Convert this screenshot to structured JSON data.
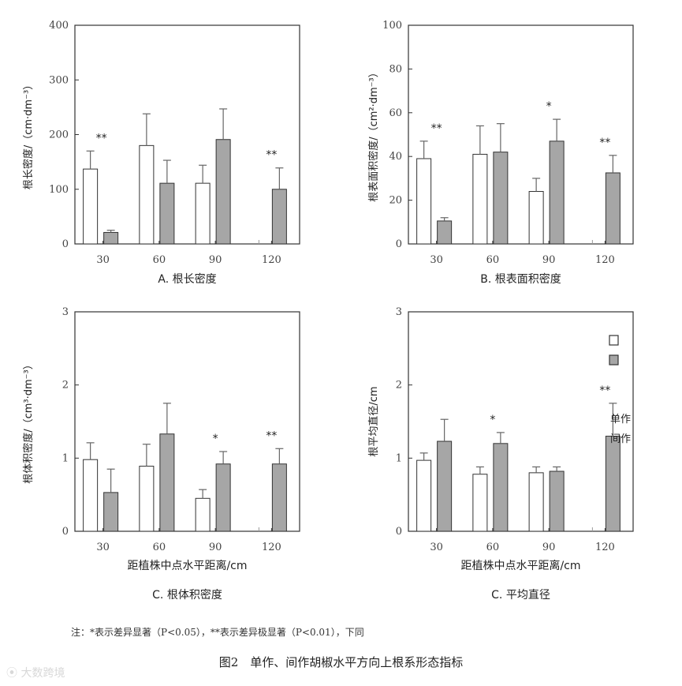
{
  "chart_data": [
    {
      "type": "bar",
      "panel_caption": "A. 根长密度",
      "xlabel": "",
      "ylabel": "根长密度/（cm·dm⁻³）",
      "ylim": [
        0,
        400
      ],
      "yticks": [
        "0",
        "100",
        "200",
        "300",
        "400"
      ],
      "categories": [
        "30",
        "60",
        "90",
        "120"
      ],
      "series": [
        {
          "name": "单作",
          "values": [
            137,
            180,
            111,
            0
          ],
          "errors": [
            33,
            58,
            33,
            0
          ]
        },
        {
          "name": "间作",
          "values": [
            21,
            111,
            191,
            100
          ],
          "errors": [
            4,
            42,
            56,
            39
          ]
        }
      ],
      "significance": [
        "**",
        "",
        "",
        "**"
      ]
    },
    {
      "type": "bar",
      "panel_caption": "B. 根表面积密度",
      "xlabel": "",
      "ylabel": "根表面积密度/（cm²·dm⁻³）",
      "ylim": [
        0,
        100
      ],
      "yticks": [
        "0",
        "20",
        "40",
        "60",
        "80",
        "100"
      ],
      "categories": [
        "30",
        "60",
        "90",
        "120"
      ],
      "series": [
        {
          "name": "单作",
          "values": [
            39,
            41,
            24,
            0
          ],
          "errors": [
            8,
            13,
            6,
            0
          ]
        },
        {
          "name": "间作",
          "values": [
            10.5,
            42,
            47,
            32.5
          ],
          "errors": [
            1.5,
            13,
            10,
            8
          ]
        }
      ],
      "significance": [
        "**",
        "",
        "*",
        "**"
      ]
    },
    {
      "type": "bar",
      "panel_caption": "C. 根体积密度",
      "xlabel": "距植株中点水平距离/cm",
      "ylabel": "根体积密度/（cm³·dm⁻³）",
      "ylim": [
        0,
        3
      ],
      "yticks": [
        "0",
        "1",
        "2",
        "3"
      ],
      "categories": [
        "30",
        "60",
        "90",
        "120"
      ],
      "series": [
        {
          "name": "单作",
          "values": [
            0.98,
            0.89,
            0.45,
            0
          ],
          "errors": [
            0.23,
            0.3,
            0.12,
            0
          ]
        },
        {
          "name": "间作",
          "values": [
            0.53,
            1.33,
            0.92,
            0.92
          ],
          "errors": [
            0.32,
            0.42,
            0.17,
            0.21
          ]
        }
      ],
      "significance": [
        "",
        "",
        "*",
        "**"
      ]
    },
    {
      "type": "bar",
      "panel_caption": "C. 平均直径",
      "xlabel": "距植株中点水平距离/cm",
      "ylabel": "根平均直径/cm",
      "ylim": [
        0,
        3
      ],
      "yticks": [
        "0",
        "1",
        "2",
        "3"
      ],
      "categories": [
        "30",
        "60",
        "90",
        "120"
      ],
      "series": [
        {
          "name": "单作",
          "values": [
            0.97,
            0.78,
            0.8,
            0
          ],
          "errors": [
            0.1,
            0.1,
            0.08,
            0
          ]
        },
        {
          "name": "间作",
          "values": [
            1.23,
            1.2,
            0.82,
            1.3
          ],
          "errors": [
            0.3,
            0.15,
            0.06,
            0.45
          ]
        }
      ],
      "significance": [
        "",
        "*",
        "",
        "**"
      ],
      "legend": [
        "单作",
        "间作"
      ]
    }
  ],
  "note": "注：*表示差异显著（P<0.05），**表示差异极显著（P<0.01），下同",
  "figure_title": "图2　单作、间作胡椒水平方向上根系形态指标",
  "watermark": "大数跨境",
  "colors": {
    "monocrop_fill": "#ffffff",
    "intercrop_fill": "#a6a6a6",
    "axis": "#333333",
    "errorbar": "#666666"
  }
}
